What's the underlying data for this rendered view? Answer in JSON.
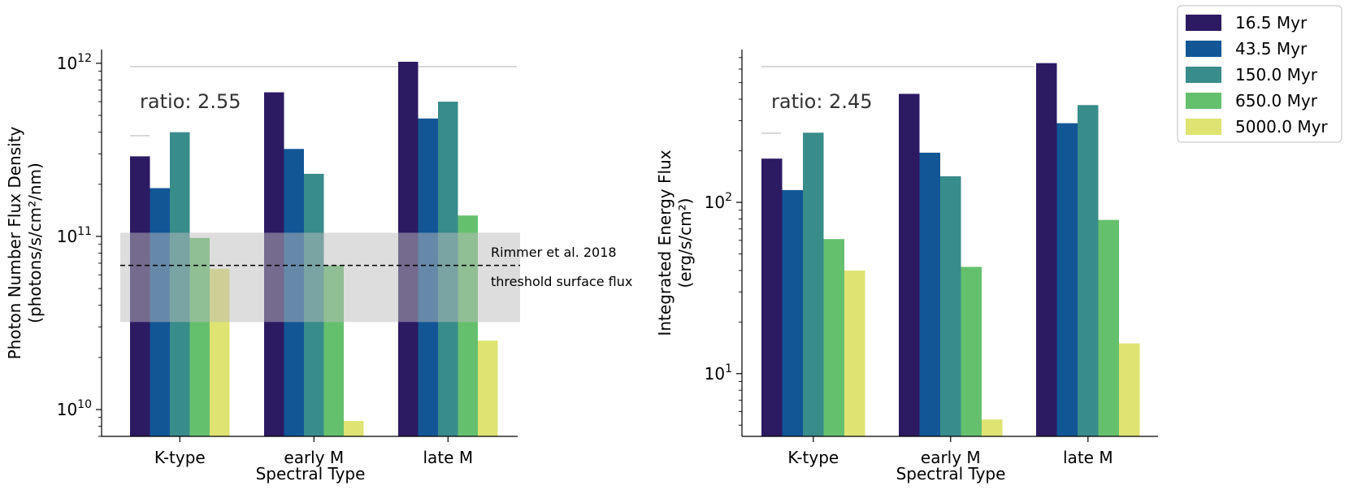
{
  "chart_data": [
    {
      "type": "bar",
      "yscale": "log",
      "categories": [
        "K-type",
        "early M",
        "late M"
      ],
      "series": [
        {
          "name": "16.5 Myr",
          "color": "#2c1a63",
          "values": [
            290000000000.0,
            680000000000.0,
            1020000000000.0
          ]
        },
        {
          "name": "43.5 Myr",
          "color": "#125696",
          "values": [
            190000000000.0,
            320000000000.0,
            480000000000.0
          ]
        },
        {
          "name": "150.0 Myr",
          "color": "#388c8a",
          "values": [
            400000000000.0,
            230000000000.0,
            600000000000.0
          ]
        },
        {
          "name": "650.0 Myr",
          "color": "#65c06e",
          "values": [
            98000000000.0,
            68000000000.0,
            132000000000.0
          ]
        },
        {
          "name": "5000.0 Myr",
          "color": "#dfe372",
          "values": [
            65000000000.0,
            8600000000.0,
            25000000000.0
          ]
        }
      ],
      "title": "",
      "xlabel": "Spectral Type",
      "ylabel_line1": "Photon Number Flux Density",
      "ylabel_line2": "(photons/s/cm²/nm)",
      "ylim": [
        7000000000.0,
        1200000000000.0
      ],
      "yticks": [
        {
          "value": 10000000000.0,
          "base": "10",
          "exp": "10"
        },
        {
          "value": 100000000000.0,
          "base": "10",
          "exp": "11"
        },
        {
          "value": 1000000000000.0,
          "base": "10",
          "exp": "12"
        }
      ],
      "ratio_text": "ratio: 2.55",
      "threshold": {
        "value": 68000000000.0,
        "band": [
          32000000000.0,
          105000000000.0
        ]
      },
      "annotations": [
        "Rimmer et al. 2018",
        "threshold surface flux"
      ]
    },
    {
      "type": "bar",
      "yscale": "log",
      "categories": [
        "K-type",
        "early M",
        "late M"
      ],
      "series": [
        {
          "name": "16.5 Myr",
          "color": "#2c1a63",
          "values": [
            180,
            430,
            650
          ]
        },
        {
          "name": "43.5 Myr",
          "color": "#125696",
          "values": [
            118,
            195,
            290
          ]
        },
        {
          "name": "150.0 Myr",
          "color": "#388c8a",
          "values": [
            255,
            142,
            370
          ]
        },
        {
          "name": "650.0 Myr",
          "color": "#65c06e",
          "values": [
            61,
            42,
            79
          ]
        },
        {
          "name": "5000.0 Myr",
          "color": "#dfe372",
          "values": [
            40,
            5.4,
            15
          ]
        }
      ],
      "title": "",
      "xlabel": "Spectral Type",
      "ylabel_line1": "Integrated Energy Flux",
      "ylabel_line2": "(erg/s/cm²)",
      "ylim": [
        4.3,
        780
      ],
      "yticks": [
        {
          "value": 10,
          "base": "10",
          "exp": "1"
        },
        {
          "value": 100,
          "base": "10",
          "exp": "2"
        }
      ],
      "ratio_text": "ratio: 2.45"
    }
  ]
}
